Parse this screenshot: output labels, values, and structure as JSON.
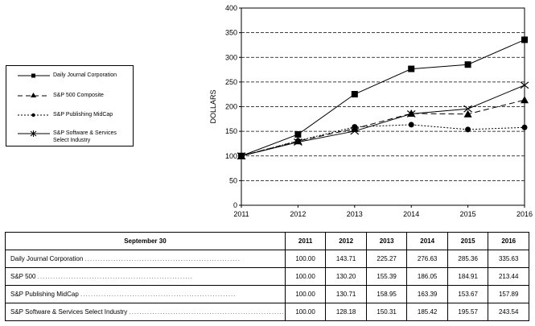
{
  "chart_data": {
    "type": "line",
    "x": [
      "2011",
      "2012",
      "2013",
      "2014",
      "2015",
      "2016"
    ],
    "ylabel": "DOLLARS",
    "ylim": [
      0,
      400
    ],
    "yticks": [
      "0",
      "50",
      "100",
      "150",
      "200",
      "250",
      "300",
      "350",
      "400"
    ],
    "grid": true,
    "legend_position": "left",
    "series": [
      {
        "name": "Daily Journal Corporation",
        "marker": "square",
        "dash": "solid",
        "values": [
          100.0,
          143.71,
          225.27,
          276.63,
          285.36,
          335.63
        ]
      },
      {
        "name": "S&P 500 Composite",
        "marker": "triangle",
        "dash": "dashed",
        "values": [
          100.0,
          130.2,
          155.39,
          186.05,
          184.91,
          213.44
        ]
      },
      {
        "name": "S&P Publishing MidCap",
        "marker": "circle",
        "dash": "dotted",
        "values": [
          100.0,
          130.71,
          158.95,
          163.39,
          153.67,
          157.89
        ]
      },
      {
        "name": "S&P Software & Services Select Industry",
        "marker": "x",
        "dash": "solid",
        "values": [
          100.0,
          128.18,
          150.31,
          185.42,
          195.57,
          243.54
        ]
      }
    ]
  },
  "table": {
    "header": "September 30",
    "years": [
      "2011",
      "2012",
      "2013",
      "2014",
      "2015",
      "2016"
    ],
    "rows": [
      {
        "label": "Daily Journal Corporation",
        "values": [
          "100.00",
          "143.71",
          "225.27",
          "276.63",
          "285.36",
          "335.63"
        ]
      },
      {
        "label": "S&P 500",
        "values": [
          "100.00",
          "130.20",
          "155.39",
          "186.05",
          "184.91",
          "213.44"
        ]
      },
      {
        "label": "S&P Publishing MidCap",
        "values": [
          "100.00",
          "130.71",
          "158.95",
          "163.39",
          "153.67",
          "157.89"
        ]
      },
      {
        "label": "S&P Software & Services Select Industry",
        "values": [
          "100.00",
          "128.18",
          "150.31",
          "185.42",
          "195.57",
          "243.54"
        ]
      }
    ]
  }
}
